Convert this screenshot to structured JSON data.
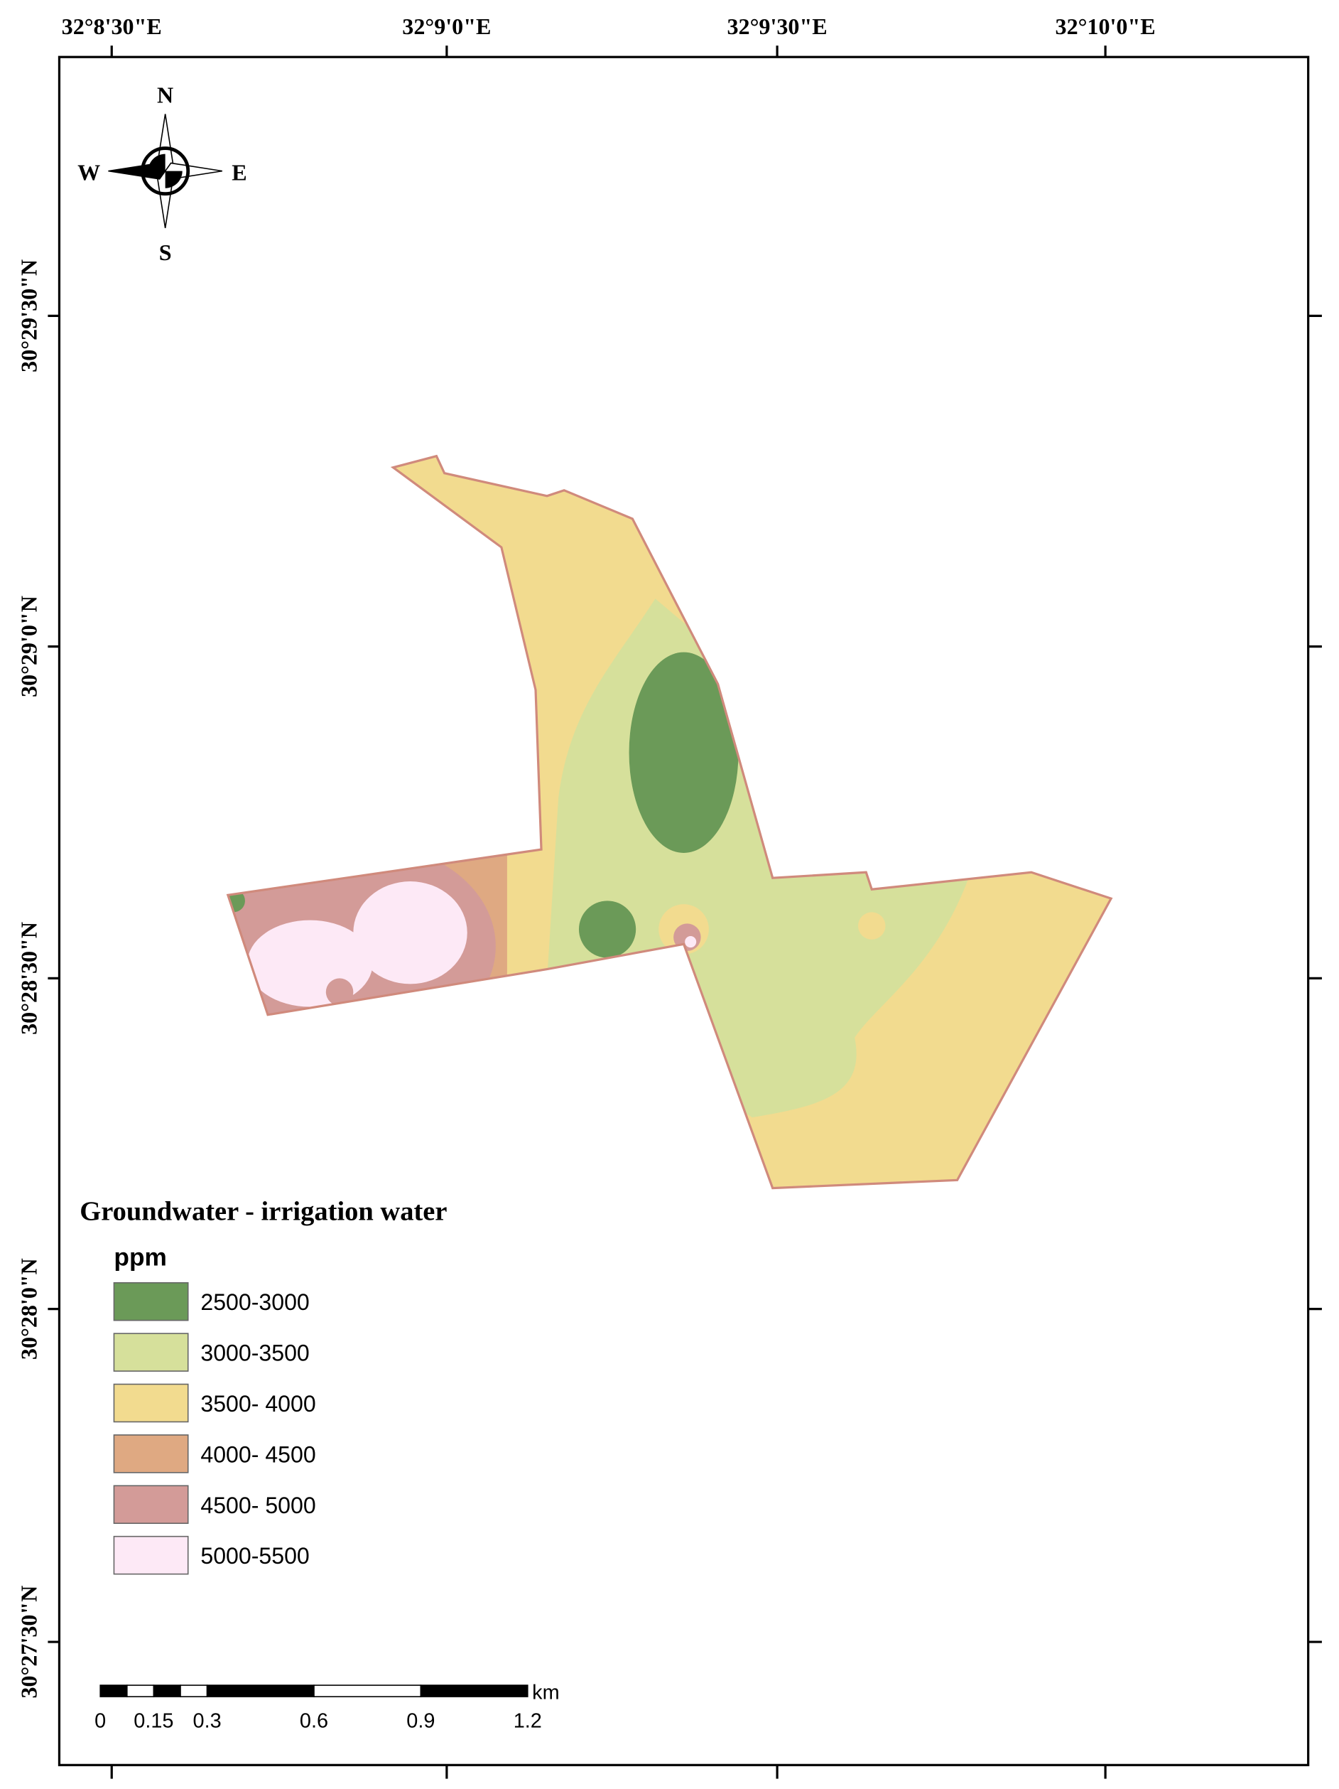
{
  "map": {
    "top_labels": [
      "32°8'30\"E",
      "32°9'0\"E",
      "32°9'30\"E",
      "32°10'0\"E"
    ],
    "left_labels": [
      "30°29'30\"N",
      "30°29'0\"N",
      "30°28'30\"N",
      "30°28'0\"N",
      "30°27'30\"N"
    ],
    "compass": {
      "n": "N",
      "s": "S",
      "e": "E",
      "w": "W"
    },
    "legend": {
      "title": "Groundwater - irrigation water",
      "unit": "ppm",
      "items": [
        {
          "label": "2500-3000",
          "color": "#6b9a58"
        },
        {
          "label": "3000-3500",
          "color": "#d6e09b"
        },
        {
          "label": "3500- 4000",
          "color": "#f2db8f"
        },
        {
          "label": "4000- 4500",
          "color": "#dfa982"
        },
        {
          "label": "4500- 5000",
          "color": "#d39b98"
        },
        {
          "label": "5000-5500",
          "color": "#fde9f6"
        }
      ]
    },
    "scale_bar": {
      "unit": "km",
      "ticks": [
        0,
        0.15,
        0.3,
        0.6,
        0.9,
        1.2
      ]
    }
  }
}
